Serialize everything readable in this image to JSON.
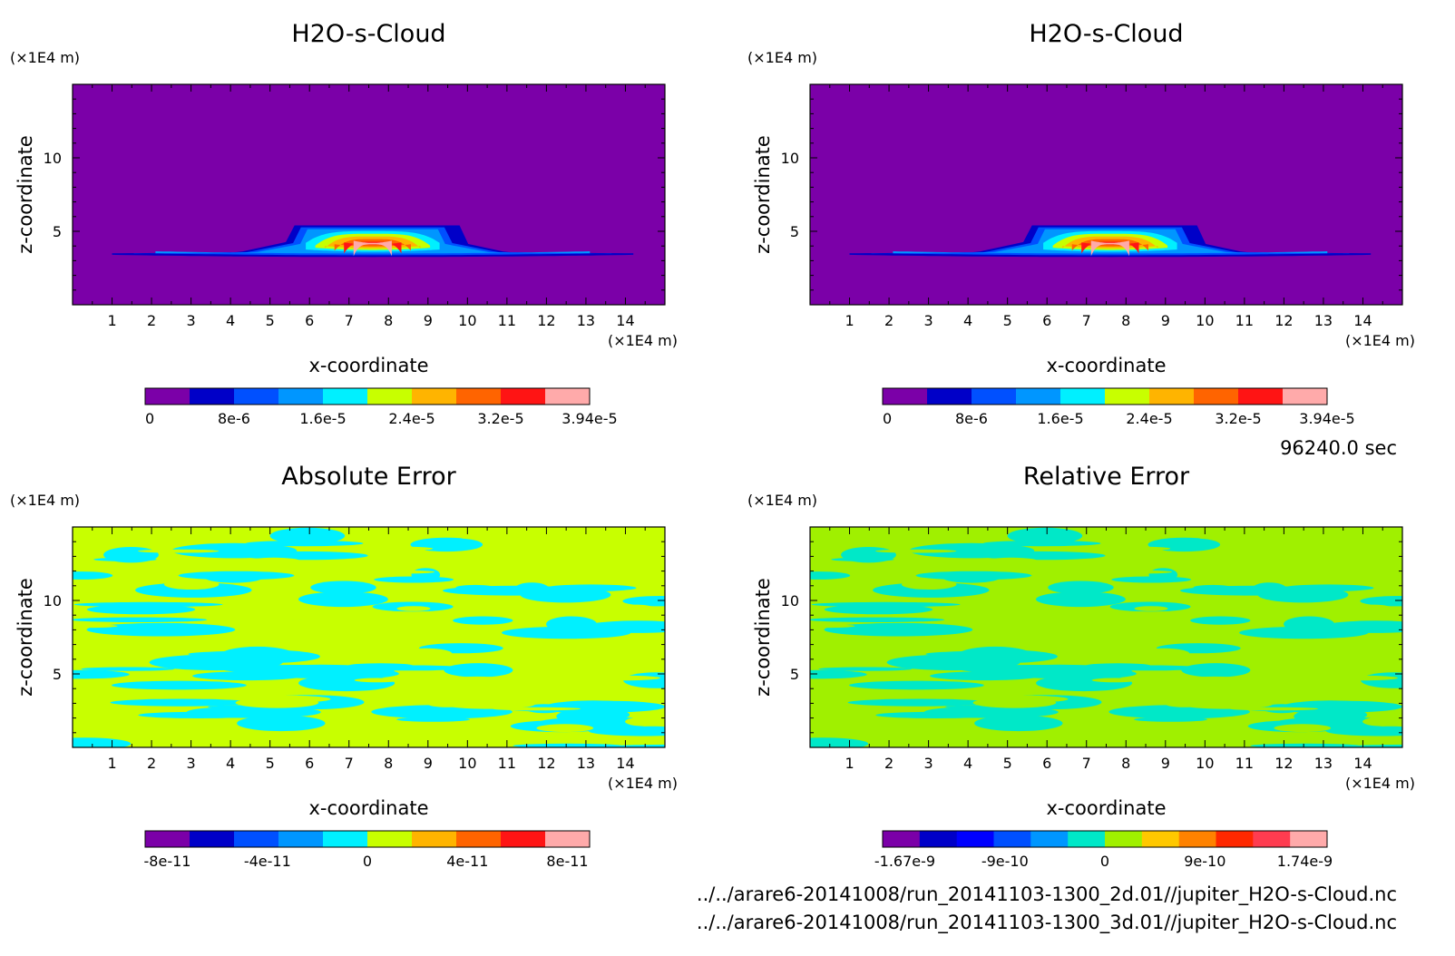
{
  "figure": {
    "time_label": "96240.0 sec",
    "file_lines": [
      "../../arare6-20141008/run_20141103-1300_2d.01//jupiter_H2O-s-Cloud.nc",
      "../../arare6-20141008/run_20141103-1300_3d.01//jupiter_H2O-s-Cloud.nc"
    ]
  },
  "chart_data": [
    {
      "type": "heatmap",
      "title": "H2O-s-Cloud",
      "xlabel": "x-coordinate",
      "ylabel": "z-coordinate",
      "x_unit": "(×1E4 m)",
      "y_unit": "(×1E4 m)",
      "xlim": [
        0,
        15
      ],
      "ylim": [
        0,
        15
      ],
      "x_ticks": [
        1,
        2,
        3,
        4,
        5,
        6,
        7,
        8,
        9,
        10,
        11,
        12,
        13,
        14
      ],
      "y_ticks": [
        5,
        10
      ],
      "field": "cloud",
      "colorbar": {
        "colors": [
          "#7b00a8",
          "#0000c8",
          "#0050ff",
          "#0096ff",
          "#00f0ff",
          "#c8ff00",
          "#ffb400",
          "#ff6400",
          "#ff1414",
          "#ffaaaa"
        ],
        "tick_labels": [
          "0",
          "8e-6",
          "1.6e-5",
          "2.4e-5",
          "3.2e-5",
          "3.94e-5"
        ]
      }
    },
    {
      "type": "heatmap",
      "title": "H2O-s-Cloud",
      "xlabel": "x-coordinate",
      "ylabel": "z-coordinate",
      "x_unit": "(×1E4 m)",
      "y_unit": "(×1E4 m)",
      "xlim": [
        0,
        15
      ],
      "ylim": [
        0,
        15
      ],
      "x_ticks": [
        1,
        2,
        3,
        4,
        5,
        6,
        7,
        8,
        9,
        10,
        11,
        12,
        13,
        14
      ],
      "y_ticks": [
        5,
        10
      ],
      "field": "cloud",
      "colorbar": {
        "colors": [
          "#7b00a8",
          "#0000c8",
          "#0050ff",
          "#0096ff",
          "#00f0ff",
          "#c8ff00",
          "#ffb400",
          "#ff6400",
          "#ff1414",
          "#ffaaaa"
        ],
        "tick_labels": [
          "0",
          "8e-6",
          "1.6e-5",
          "2.4e-5",
          "3.2e-5",
          "3.94e-5"
        ]
      }
    },
    {
      "type": "heatmap",
      "title": "Absolute Error",
      "xlabel": "x-coordinate",
      "ylabel": "z-coordinate",
      "x_unit": "(×1E4 m)",
      "y_unit": "(×1E4 m)",
      "xlim": [
        0,
        15
      ],
      "ylim": [
        0,
        15
      ],
      "x_ticks": [
        1,
        2,
        3,
        4,
        5,
        6,
        7,
        8,
        9,
        10,
        11,
        12,
        13,
        14
      ],
      "y_ticks": [
        5,
        10
      ],
      "field": "noise",
      "field_colors": [
        "#00f0ff",
        "#c8ff00"
      ],
      "colorbar": {
        "colors": [
          "#7b00a8",
          "#0000c8",
          "#0050ff",
          "#0096ff",
          "#00f0ff",
          "#c8ff00",
          "#ffb400",
          "#ff6400",
          "#ff1414",
          "#ffaaaa"
        ],
        "tick_labels": [
          "-8e-11",
          "-4e-11",
          "0",
          "4e-11",
          "8e-11"
        ]
      }
    },
    {
      "type": "heatmap",
      "title": "Relative Error",
      "xlabel": "x-coordinate",
      "ylabel": "z-coordinate",
      "x_unit": "(×1E4 m)",
      "y_unit": "(×1E4 m)",
      "xlim": [
        0,
        15
      ],
      "ylim": [
        0,
        15
      ],
      "x_ticks": [
        1,
        2,
        3,
        4,
        5,
        6,
        7,
        8,
        9,
        10,
        11,
        12,
        13,
        14
      ],
      "y_ticks": [
        5,
        10
      ],
      "field": "noise",
      "field_colors": [
        "#00e8c8",
        "#a0f000"
      ],
      "colorbar": {
        "colors": [
          "#7b00a8",
          "#0000c8",
          "#0000ff",
          "#0050ff",
          "#0096ff",
          "#00e8c8",
          "#a0f000",
          "#ffc800",
          "#ff8200",
          "#ff2800",
          "#ff3c50",
          "#ffaaaa"
        ],
        "tick_labels": [
          "-1.67e-9",
          "-9e-10",
          "0",
          "9e-10",
          "1.74e-9"
        ]
      }
    }
  ]
}
